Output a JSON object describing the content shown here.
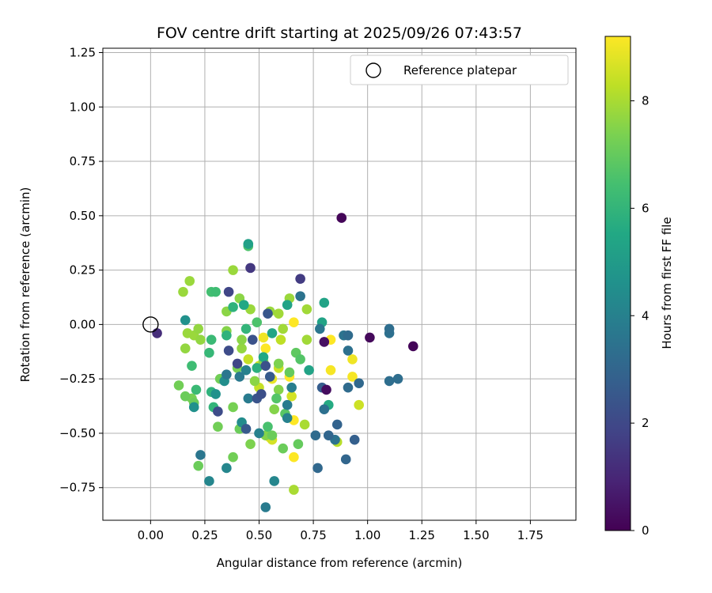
{
  "chart_data": {
    "type": "scatter",
    "title": "FOV centre drift starting at 2025/09/26 07:43:57",
    "xlabel": "Angular distance from reference (arcmin)",
    "ylabel": "Rotation from reference (arcmin)",
    "xlim": [
      -0.22,
      1.96
    ],
    "ylim": [
      -0.9,
      1.27
    ],
    "xticks": [
      0.0,
      0.25,
      0.5,
      0.75,
      1.0,
      1.25,
      1.5,
      1.75
    ],
    "xtick_labels": [
      "0.00",
      "0.25",
      "0.50",
      "0.75",
      "1.00",
      "1.25",
      "1.50",
      "1.75"
    ],
    "yticks": [
      -0.75,
      -0.5,
      -0.25,
      0.0,
      0.25,
      0.5,
      0.75,
      1.0,
      1.25
    ],
    "ytick_labels": [
      "−0.75",
      "−0.50",
      "−0.25",
      "0.00",
      "0.25",
      "0.50",
      "0.75",
      "1.00",
      "1.25"
    ],
    "grid": true,
    "legend": {
      "label": "Reference platepar",
      "position": "top-right"
    },
    "reference": {
      "x": 0.0,
      "y": 0.0
    },
    "colorbar": {
      "label": "Hours from first FF file",
      "min": 0,
      "max": 9.2,
      "ticks": [
        0,
        2,
        4,
        6,
        8
      ],
      "tick_labels": [
        "0",
        "2",
        "4",
        "6",
        "8"
      ],
      "colormap": "viridis"
    },
    "points": [
      [
        0.88,
        0.49,
        0.1
      ],
      [
        1.21,
        -0.1,
        0.1
      ],
      [
        1.01,
        -0.06,
        0.2
      ],
      [
        0.81,
        -0.3,
        0.3
      ],
      [
        0.8,
        -0.08,
        0.4
      ],
      [
        0.03,
        -0.04,
        1.2
      ],
      [
        0.46,
        0.26,
        1.5
      ],
      [
        0.69,
        0.21,
        1.6
      ],
      [
        0.36,
        0.15,
        1.9
      ],
      [
        0.4,
        -0.18,
        1.9
      ],
      [
        0.36,
        -0.12,
        2.1
      ],
      [
        0.31,
        -0.4,
        2.1
      ],
      [
        0.47,
        -0.07,
        2.3
      ],
      [
        0.53,
        -0.19,
        2.3
      ],
      [
        0.51,
        -0.32,
        2.2
      ],
      [
        0.49,
        -0.34,
        2.4
      ],
      [
        0.55,
        -0.24,
        2.6
      ],
      [
        0.54,
        0.05,
        2.5
      ],
      [
        0.44,
        -0.48,
        2.6
      ],
      [
        0.79,
        -0.29,
        2.7
      ],
      [
        0.86,
        -0.46,
        2.9
      ],
      [
        0.94,
        -0.53,
        2.8
      ],
      [
        0.9,
        -0.62,
        3.0
      ],
      [
        0.82,
        -0.51,
        3.0
      ],
      [
        0.77,
        -0.66,
        3.1
      ],
      [
        0.76,
        -0.51,
        3.2
      ],
      [
        0.91,
        -0.29,
        3.2
      ],
      [
        0.96,
        -0.27,
        3.1
      ],
      [
        1.1,
        -0.26,
        3.3
      ],
      [
        1.14,
        -0.25,
        3.3
      ],
      [
        1.1,
        -0.04,
        3.4
      ],
      [
        1.1,
        -0.02,
        3.3
      ],
      [
        0.91,
        -0.05,
        3.2
      ],
      [
        0.91,
        -0.12,
        3.4
      ],
      [
        0.89,
        -0.05,
        3.5
      ],
      [
        0.85,
        -0.53,
        3.5
      ],
      [
        0.8,
        -0.39,
        3.4
      ],
      [
        0.78,
        -0.02,
        3.6
      ],
      [
        0.69,
        0.13,
        3.5
      ],
      [
        0.35,
        -0.23,
        3.6
      ],
      [
        0.41,
        -0.24,
        3.7
      ],
      [
        0.23,
        -0.6,
        3.6
      ],
      [
        0.27,
        -0.72,
        4.2
      ],
      [
        0.35,
        -0.66,
        4.2
      ],
      [
        0.53,
        -0.84,
        3.8
      ],
      [
        0.57,
        -0.72,
        4.2
      ],
      [
        0.63,
        -0.43,
        4.0
      ],
      [
        0.63,
        -0.37,
        3.8
      ],
      [
        0.65,
        -0.29,
        3.9
      ],
      [
        0.45,
        -0.34,
        3.8
      ],
      [
        0.44,
        -0.21,
        4.0
      ],
      [
        0.5,
        -0.5,
        4.0
      ],
      [
        0.42,
        -0.45,
        4.4
      ],
      [
        0.3,
        -0.32,
        4.6
      ],
      [
        0.34,
        -0.26,
        4.5
      ],
      [
        0.16,
        0.02,
        4.6
      ],
      [
        0.2,
        -0.38,
        4.6
      ],
      [
        0.45,
        0.37,
        5.2
      ],
      [
        0.63,
        0.09,
        5.3
      ],
      [
        0.79,
        0.01,
        5.3
      ],
      [
        0.8,
        0.1,
        5.3
      ],
      [
        0.82,
        -0.37,
        5.6
      ],
      [
        0.73,
        -0.21,
        5.3
      ],
      [
        0.56,
        -0.04,
        5.4
      ],
      [
        0.52,
        -0.15,
        5.5
      ],
      [
        0.49,
        -0.2,
        5.8
      ],
      [
        0.38,
        0.08,
        5.9
      ],
      [
        0.43,
        0.09,
        5.5
      ],
      [
        0.44,
        -0.02,
        6.0
      ],
      [
        0.35,
        -0.05,
        5.9
      ],
      [
        0.28,
        -0.31,
        5.9
      ],
      [
        0.29,
        -0.38,
        6.0
      ],
      [
        0.21,
        -0.3,
        6.2
      ],
      [
        0.19,
        -0.19,
        6.3
      ],
      [
        0.27,
        -0.13,
        6.1
      ],
      [
        0.28,
        -0.07,
        6.2
      ],
      [
        0.28,
        0.15,
        6.4
      ],
      [
        0.3,
        0.15,
        6.3
      ],
      [
        0.45,
        0.36,
        6.6
      ],
      [
        0.49,
        0.01,
        6.6
      ],
      [
        0.54,
        -0.47,
        6.5
      ],
      [
        0.58,
        -0.34,
        6.7
      ],
      [
        0.62,
        -0.41,
        6.8
      ],
      [
        0.67,
        -0.13,
        6.9
      ],
      [
        0.69,
        -0.16,
        6.7
      ],
      [
        0.64,
        -0.22,
        7.0
      ],
      [
        0.68,
        -0.55,
        7.0
      ],
      [
        0.61,
        -0.57,
        7.1
      ],
      [
        0.56,
        -0.51,
        7.1
      ],
      [
        0.41,
        -0.48,
        7.1
      ],
      [
        0.38,
        -0.61,
        7.2
      ],
      [
        0.22,
        -0.65,
        7.1
      ],
      [
        0.31,
        -0.47,
        7.2
      ],
      [
        0.2,
        -0.36,
        7.1
      ],
      [
        0.16,
        -0.33,
        7.1
      ],
      [
        0.13,
        -0.28,
        7.2
      ],
      [
        0.19,
        -0.34,
        7.3
      ],
      [
        0.32,
        -0.25,
        7.2
      ],
      [
        0.38,
        -0.38,
        7.3
      ],
      [
        0.4,
        -0.2,
        7.3
      ],
      [
        0.46,
        -0.55,
        7.4
      ],
      [
        0.53,
        -0.51,
        7.5
      ],
      [
        0.57,
        -0.39,
        7.5
      ],
      [
        0.59,
        -0.3,
        7.5
      ],
      [
        0.59,
        -0.18,
        7.4
      ],
      [
        0.52,
        -0.17,
        7.5
      ],
      [
        0.48,
        -0.26,
        7.6
      ],
      [
        0.42,
        -0.11,
        7.7
      ],
      [
        0.42,
        -0.07,
        7.6
      ],
      [
        0.35,
        0.06,
        7.6
      ],
      [
        0.35,
        -0.03,
        7.5
      ],
      [
        0.23,
        -0.07,
        7.7
      ],
      [
        0.22,
        -0.02,
        7.7
      ],
      [
        0.18,
        0.2,
        7.8
      ],
      [
        0.15,
        0.15,
        7.8
      ],
      [
        0.16,
        -0.11,
        7.7
      ],
      [
        0.17,
        -0.04,
        7.8
      ],
      [
        0.2,
        -0.05,
        7.8
      ],
      [
        0.38,
        0.25,
        7.8
      ],
      [
        0.41,
        0.12,
        7.6
      ],
      [
        0.46,
        0.07,
        7.8
      ],
      [
        0.55,
        0.06,
        7.8
      ],
      [
        0.59,
        0.05,
        7.9
      ],
      [
        0.61,
        -0.02,
        7.9
      ],
      [
        0.64,
        0.12,
        7.8
      ],
      [
        0.72,
        0.07,
        7.9
      ],
      [
        0.72,
        -0.07,
        7.9
      ],
      [
        0.71,
        -0.46,
        8.0
      ],
      [
        0.66,
        -0.76,
        8.0
      ],
      [
        0.86,
        -0.54,
        8.2
      ],
      [
        0.96,
        -0.37,
        8.5
      ],
      [
        0.65,
        -0.33,
        8.6
      ],
      [
        0.59,
        -0.2,
        8.5
      ],
      [
        0.56,
        -0.53,
        8.6
      ],
      [
        0.5,
        -0.29,
        8.4
      ],
      [
        0.5,
        -0.19,
        8.6
      ],
      [
        0.45,
        -0.16,
        8.4
      ],
      [
        0.6,
        -0.07,
        8.3
      ],
      [
        0.93,
        -0.16,
        9.0
      ],
      [
        0.93,
        -0.24,
        9.1
      ],
      [
        0.83,
        -0.21,
        9.1
      ],
      [
        0.83,
        -0.07,
        9.2
      ],
      [
        0.66,
        0.01,
        9.2
      ],
      [
        0.64,
        -0.24,
        9.2
      ],
      [
        0.66,
        -0.44,
        9.2
      ],
      [
        0.66,
        -0.61,
        9.2
      ],
      [
        0.55,
        -0.52,
        9.2
      ],
      [
        0.53,
        -0.11,
        9.2
      ],
      [
        0.52,
        -0.06,
        9.0
      ],
      [
        0.56,
        -0.25,
        8.9
      ]
    ]
  }
}
